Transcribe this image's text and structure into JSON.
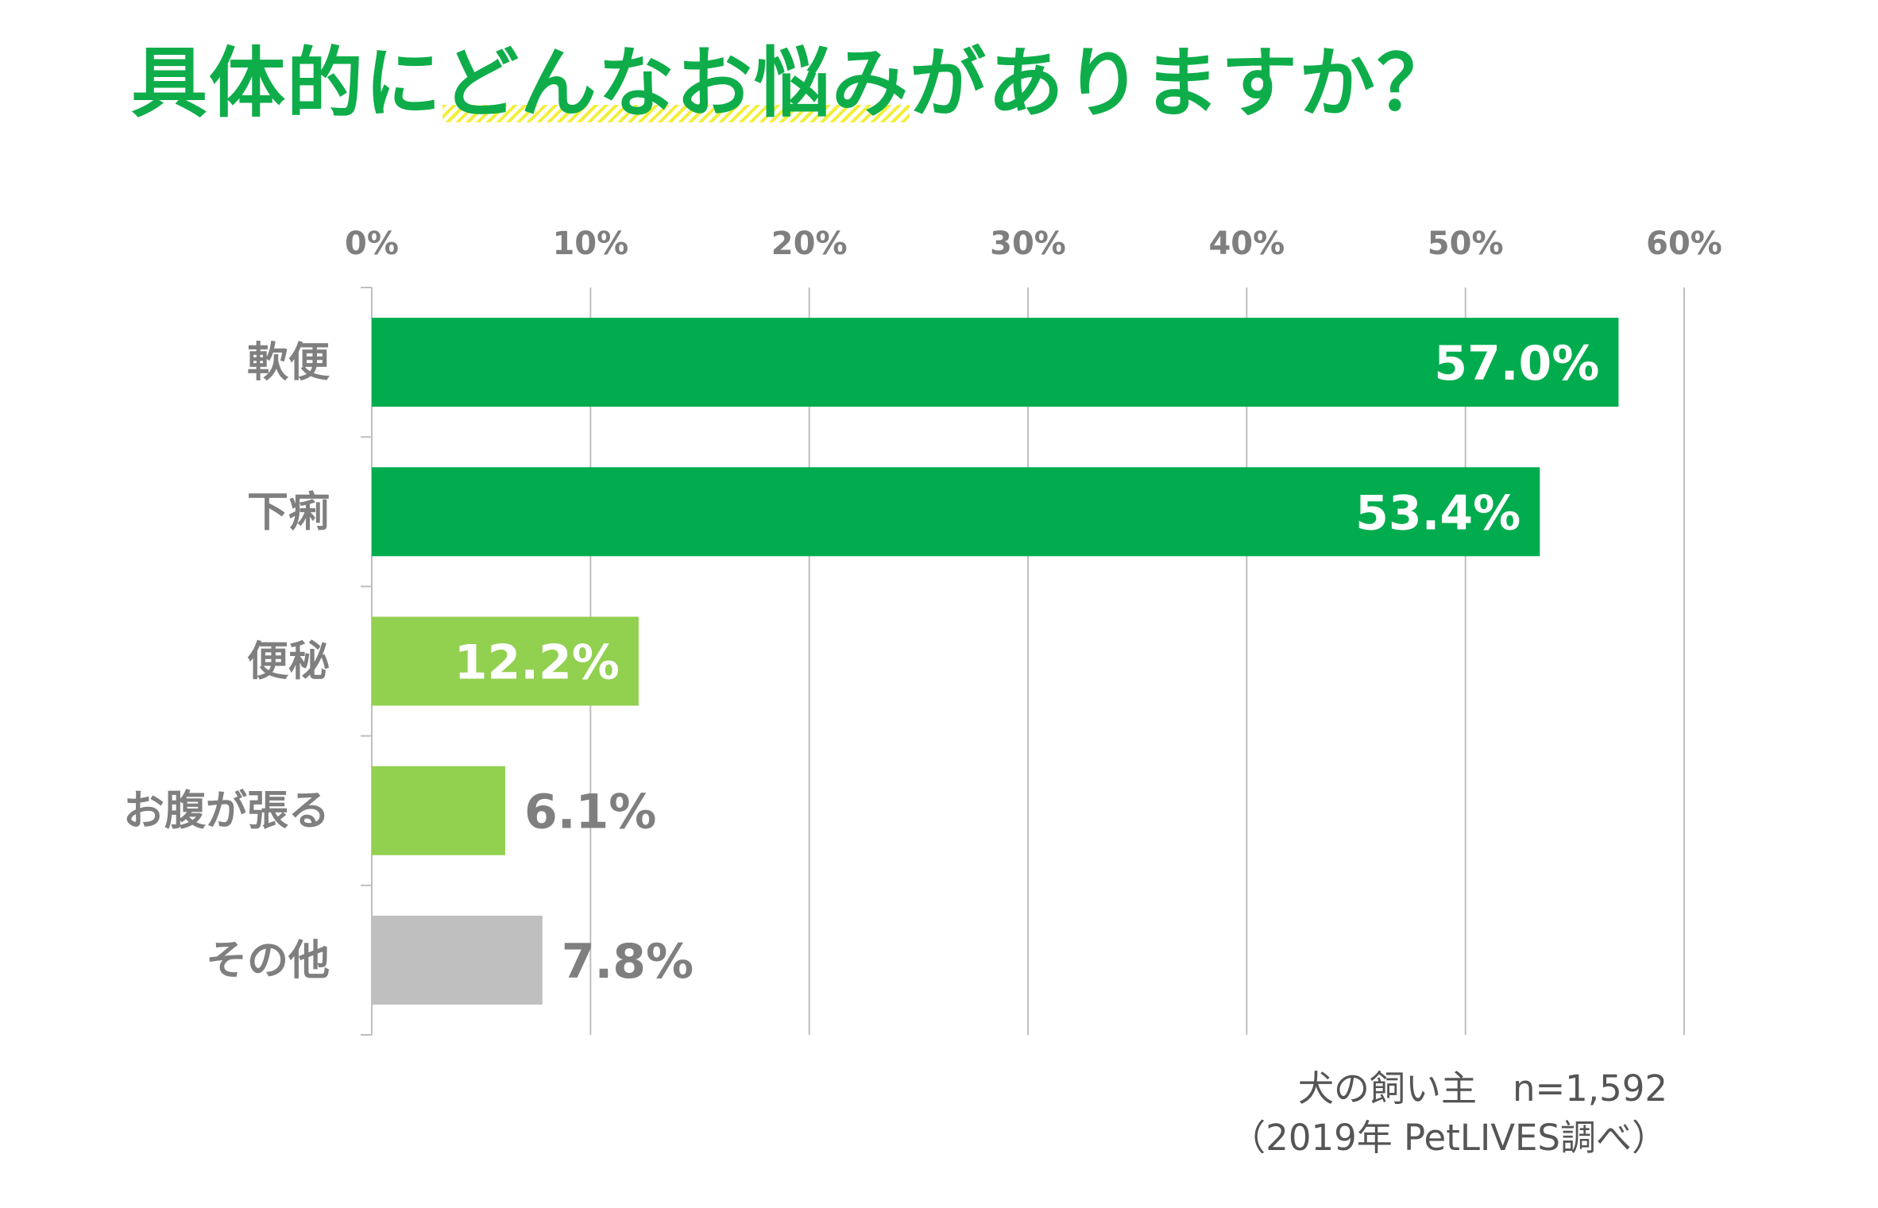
{
  "title": {
    "before": "具体的に",
    "highlight": "どんなお悩み",
    "after": "がありますか？"
  },
  "chart_data": {
    "type": "bar",
    "orientation": "horizontal",
    "title": "具体的にどんなお悩みがありますか？",
    "categories": [
      "軟便",
      "下痢",
      "便秘",
      "お腹が張る",
      "その他"
    ],
    "values": [
      57.0,
      53.4,
      12.2,
      6.1,
      7.8
    ],
    "value_labels": [
      "57.0%",
      "53.4%",
      "12.2%",
      "6.1%",
      "7.8%"
    ],
    "bar_colors": [
      "#00ac4e",
      "#00ac4e",
      "#92d050",
      "#92d050",
      "#bfbfbf"
    ],
    "label_inside": [
      true,
      true,
      true,
      false,
      false
    ],
    "xlim": [
      0,
      60
    ],
    "xticks": [
      0,
      10,
      20,
      30,
      40,
      50,
      60
    ],
    "xtick_labels": [
      "0%",
      "10%",
      "20%",
      "30%",
      "40%",
      "50%",
      "60%"
    ],
    "x_axis_position": "top",
    "grid": true,
    "legend": "none",
    "colors": {
      "label_inside": "#ffffff",
      "label_outside": "#7f7f7f",
      "axis_text": "#7f7f7f",
      "grid": "#bfbfbf"
    }
  },
  "footnote": {
    "line1": "犬の飼い主　n=1,592",
    "line2": "（2019年 PetLIVES調べ）"
  }
}
